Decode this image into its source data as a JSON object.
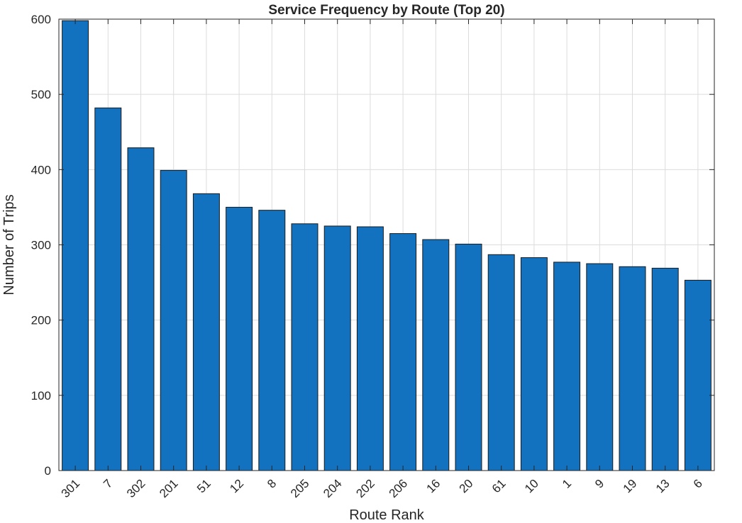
{
  "chart_data": {
    "type": "bar",
    "title": "Service Frequency by Route (Top 20)",
    "xlabel": "Route Rank",
    "ylabel": "Number of Trips",
    "categories": [
      "301",
      "7",
      "302",
      "201",
      "51",
      "12",
      "8",
      "205",
      "204",
      "202",
      "206",
      "16",
      "20",
      "61",
      "10",
      "1",
      "9",
      "19",
      "13",
      "6"
    ],
    "values": [
      598,
      482,
      429,
      399,
      368,
      350,
      346,
      328,
      325,
      324,
      315,
      307,
      301,
      287,
      283,
      277,
      275,
      271,
      269,
      253
    ],
    "ylim": [
      0,
      600
    ],
    "yticks": [
      0,
      100,
      200,
      300,
      400,
      500,
      600
    ],
    "grid": true,
    "bar_color": "#1372BF"
  }
}
